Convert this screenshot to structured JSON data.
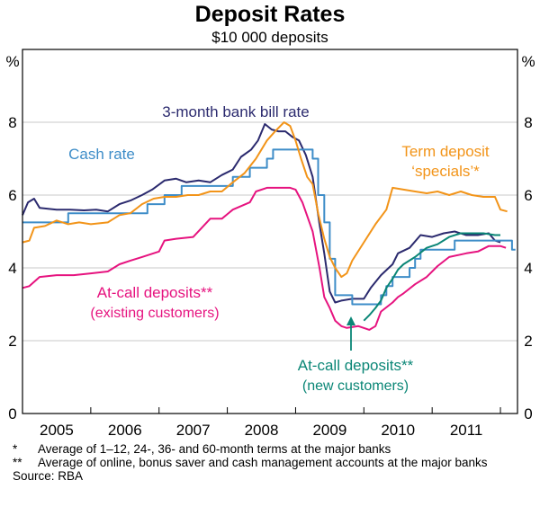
{
  "chart_data": {
    "type": "line",
    "title": "Deposit Rates",
    "subtitle": "$10 000 deposits",
    "ylabel_left": "%",
    "ylabel_right": "%",
    "ylim": [
      0,
      10
    ],
    "yticks": [
      0,
      2,
      4,
      6,
      8
    ],
    "xlim": [
      2004.5,
      2011.75
    ],
    "xtick_labels": [
      {
        "label": "2005",
        "at": 2005.0
      },
      {
        "label": "2006",
        "at": 2006.0
      },
      {
        "label": "2007",
        "at": 2007.0
      },
      {
        "label": "2008",
        "at": 2008.0
      },
      {
        "label": "2009",
        "at": 2009.0
      },
      {
        "label": "2010",
        "at": 2010.0
      },
      {
        "label": "2011",
        "at": 2011.0
      }
    ],
    "grid": true,
    "series": [
      {
        "name": "3-month bank bill rate",
        "label_lines": [
          "3-month bank bill rate"
        ],
        "color": "#2b2a6e",
        "step": false,
        "points": [
          [
            2004.5,
            5.45
          ],
          [
            2004.58,
            5.8
          ],
          [
            2004.67,
            5.9
          ],
          [
            2004.75,
            5.65
          ],
          [
            2005.0,
            5.6
          ],
          [
            2005.2,
            5.6
          ],
          [
            2005.4,
            5.58
          ],
          [
            2005.58,
            5.6
          ],
          [
            2005.75,
            5.55
          ],
          [
            2005.92,
            5.75
          ],
          [
            2006.08,
            5.85
          ],
          [
            2006.25,
            6.0
          ],
          [
            2006.4,
            6.15
          ],
          [
            2006.58,
            6.4
          ],
          [
            2006.75,
            6.45
          ],
          [
            2006.9,
            6.35
          ],
          [
            2007.08,
            6.4
          ],
          [
            2007.25,
            6.35
          ],
          [
            2007.42,
            6.55
          ],
          [
            2007.58,
            6.7
          ],
          [
            2007.7,
            7.05
          ],
          [
            2007.85,
            7.25
          ],
          [
            2007.95,
            7.5
          ],
          [
            2008.05,
            7.95
          ],
          [
            2008.15,
            7.8
          ],
          [
            2008.25,
            7.75
          ],
          [
            2008.35,
            7.75
          ],
          [
            2008.45,
            7.6
          ],
          [
            2008.55,
            7.5
          ],
          [
            2008.65,
            7.1
          ],
          [
            2008.75,
            6.5
          ],
          [
            2008.85,
            5.2
          ],
          [
            2008.92,
            4.4
          ],
          [
            2009.0,
            3.35
          ],
          [
            2009.08,
            3.05
          ],
          [
            2009.17,
            3.1
          ],
          [
            2009.33,
            3.15
          ],
          [
            2009.5,
            3.15
          ],
          [
            2009.6,
            3.45
          ],
          [
            2009.75,
            3.8
          ],
          [
            2009.92,
            4.1
          ],
          [
            2010.0,
            4.4
          ],
          [
            2010.17,
            4.55
          ],
          [
            2010.33,
            4.9
          ],
          [
            2010.5,
            4.85
          ],
          [
            2010.67,
            4.95
          ],
          [
            2010.83,
            5.0
          ],
          [
            2011.0,
            4.9
          ],
          [
            2011.17,
            4.9
          ],
          [
            2011.33,
            4.95
          ],
          [
            2011.42,
            4.75
          ],
          [
            2011.5,
            4.7
          ]
        ]
      },
      {
        "name": "Cash rate",
        "label_lines": [
          "Cash rate"
        ],
        "color": "#3e8dc8",
        "step": true,
        "points": [
          [
            2004.5,
            5.25
          ],
          [
            2005.17,
            5.5
          ],
          [
            2006.33,
            5.75
          ],
          [
            2006.58,
            6.0
          ],
          [
            2006.83,
            6.25
          ],
          [
            2007.58,
            6.5
          ],
          [
            2007.83,
            6.75
          ],
          [
            2008.08,
            7.0
          ],
          [
            2008.17,
            7.25
          ],
          [
            2008.75,
            7.0
          ],
          [
            2008.83,
            6.0
          ],
          [
            2008.92,
            5.25
          ],
          [
            2009.0,
            4.25
          ],
          [
            2009.08,
            3.25
          ],
          [
            2009.33,
            3.0
          ],
          [
            2009.75,
            3.25
          ],
          [
            2009.83,
            3.5
          ],
          [
            2009.92,
            3.75
          ],
          [
            2010.17,
            4.0
          ],
          [
            2010.25,
            4.25
          ],
          [
            2010.33,
            4.5
          ],
          [
            2010.83,
            4.75
          ],
          [
            2011.67,
            4.5
          ]
        ]
      },
      {
        "name": "Term deposit ‘specials’*",
        "label_lines": [
          "Term deposit",
          "‘specials’*"
        ],
        "color": "#f29419",
        "step": false,
        "points": [
          [
            2004.5,
            4.7
          ],
          [
            2004.6,
            4.75
          ],
          [
            2004.67,
            5.1
          ],
          [
            2004.83,
            5.15
          ],
          [
            2005.0,
            5.3
          ],
          [
            2005.17,
            5.2
          ],
          [
            2005.33,
            5.25
          ],
          [
            2005.5,
            5.2
          ],
          [
            2005.75,
            5.25
          ],
          [
            2005.92,
            5.45
          ],
          [
            2006.08,
            5.5
          ],
          [
            2006.25,
            5.75
          ],
          [
            2006.42,
            5.9
          ],
          [
            2006.58,
            5.95
          ],
          [
            2006.75,
            5.95
          ],
          [
            2006.92,
            6.0
          ],
          [
            2007.08,
            6.0
          ],
          [
            2007.25,
            6.1
          ],
          [
            2007.42,
            6.1
          ],
          [
            2007.58,
            6.35
          ],
          [
            2007.75,
            6.6
          ],
          [
            2007.92,
            7.0
          ],
          [
            2008.08,
            7.5
          ],
          [
            2008.2,
            7.75
          ],
          [
            2008.33,
            8.0
          ],
          [
            2008.42,
            7.9
          ],
          [
            2008.5,
            7.5
          ],
          [
            2008.58,
            7.0
          ],
          [
            2008.67,
            6.5
          ],
          [
            2008.75,
            6.3
          ],
          [
            2008.83,
            5.5
          ],
          [
            2008.92,
            4.8
          ],
          [
            2009.0,
            4.3
          ],
          [
            2009.08,
            4.0
          ],
          [
            2009.17,
            3.75
          ],
          [
            2009.25,
            3.85
          ],
          [
            2009.33,
            4.2
          ],
          [
            2009.5,
            4.7
          ],
          [
            2009.67,
            5.2
          ],
          [
            2009.83,
            5.6
          ],
          [
            2009.92,
            6.2
          ],
          [
            2010.08,
            6.15
          ],
          [
            2010.25,
            6.1
          ],
          [
            2010.42,
            6.05
          ],
          [
            2010.58,
            6.1
          ],
          [
            2010.75,
            6.0
          ],
          [
            2010.92,
            6.1
          ],
          [
            2011.08,
            6.0
          ],
          [
            2011.25,
            5.95
          ],
          [
            2011.42,
            5.95
          ],
          [
            2011.5,
            5.6
          ],
          [
            2011.6,
            5.55
          ]
        ]
      },
      {
        "name": "At-call deposits** (existing customers)",
        "label_lines": [
          "At-call deposits**",
          "(existing customers)"
        ],
        "color": "#e6137f",
        "step": false,
        "points": [
          [
            2004.5,
            3.45
          ],
          [
            2004.6,
            3.5
          ],
          [
            2004.75,
            3.75
          ],
          [
            2005.0,
            3.8
          ],
          [
            2005.25,
            3.8
          ],
          [
            2005.5,
            3.85
          ],
          [
            2005.75,
            3.9
          ],
          [
            2005.92,
            4.1
          ],
          [
            2006.08,
            4.2
          ],
          [
            2006.25,
            4.3
          ],
          [
            2006.5,
            4.45
          ],
          [
            2006.58,
            4.75
          ],
          [
            2006.75,
            4.8
          ],
          [
            2007.0,
            4.85
          ],
          [
            2007.25,
            5.35
          ],
          [
            2007.42,
            5.35
          ],
          [
            2007.58,
            5.6
          ],
          [
            2007.83,
            5.8
          ],
          [
            2007.92,
            6.1
          ],
          [
            2008.08,
            6.2
          ],
          [
            2008.25,
            6.2
          ],
          [
            2008.42,
            6.2
          ],
          [
            2008.5,
            6.15
          ],
          [
            2008.6,
            5.8
          ],
          [
            2008.75,
            5.0
          ],
          [
            2008.85,
            4.0
          ],
          [
            2008.92,
            3.2
          ],
          [
            2009.0,
            2.9
          ],
          [
            2009.08,
            2.55
          ],
          [
            2009.17,
            2.4
          ],
          [
            2009.25,
            2.35
          ],
          [
            2009.42,
            2.4
          ],
          [
            2009.58,
            2.3
          ],
          [
            2009.67,
            2.4
          ],
          [
            2009.75,
            2.8
          ],
          [
            2009.92,
            3.05
          ],
          [
            2010.0,
            3.2
          ],
          [
            2010.08,
            3.3
          ],
          [
            2010.25,
            3.55
          ],
          [
            2010.42,
            3.75
          ],
          [
            2010.58,
            4.05
          ],
          [
            2010.75,
            4.3
          ],
          [
            2011.0,
            4.4
          ],
          [
            2011.17,
            4.45
          ],
          [
            2011.33,
            4.6
          ],
          [
            2011.5,
            4.6
          ],
          [
            2011.58,
            4.55
          ]
        ]
      },
      {
        "name": "At-call deposits** (new customers)",
        "label_lines": [
          "At-call deposits**",
          "(new customers)"
        ],
        "color": "#0a8676",
        "step": false,
        "points": [
          [
            2009.5,
            2.55
          ],
          [
            2009.58,
            2.7
          ],
          [
            2009.67,
            2.9
          ],
          [
            2009.75,
            3.1
          ],
          [
            2009.83,
            3.45
          ],
          [
            2009.92,
            3.7
          ],
          [
            2010.0,
            3.95
          ],
          [
            2010.08,
            4.1
          ],
          [
            2010.25,
            4.3
          ],
          [
            2010.42,
            4.55
          ],
          [
            2010.58,
            4.65
          ],
          [
            2010.75,
            4.85
          ],
          [
            2010.92,
            4.95
          ],
          [
            2011.08,
            4.95
          ],
          [
            2011.25,
            4.95
          ],
          [
            2011.42,
            4.9
          ],
          [
            2011.5,
            4.9
          ]
        ]
      }
    ]
  },
  "footnotes": [
    {
      "mark": "*",
      "text": "Average of 1–12, 24-, 36- and 60-month terms at the major banks"
    },
    {
      "mark": "**",
      "text": "Average of online, bonus saver and cash management accounts at the major banks"
    }
  ],
  "source": "Source: RBA"
}
